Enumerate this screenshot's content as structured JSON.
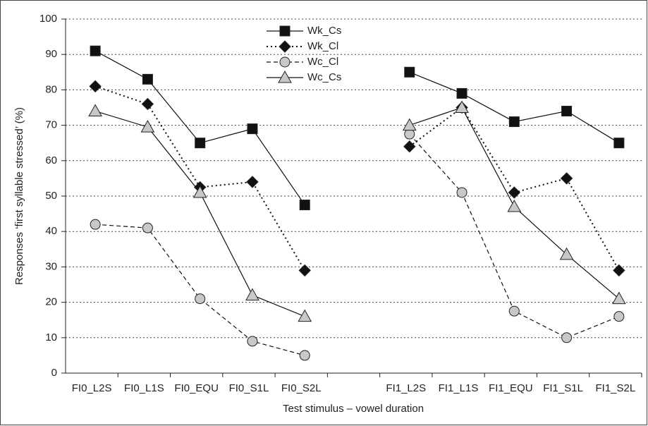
{
  "chart_data": {
    "type": "line",
    "y_label": "Responses ‘first syllable stressed’ (%)",
    "x_label": "Test stimulus – vowel duration",
    "categories": [
      "FI0_L2S",
      "FI0_L1S",
      "FI0_EQU",
      "FI0_S1L",
      "FI0_S2L",
      null,
      "FI1_L2S",
      "FI1_L1S",
      "FI1_EQU",
      "FI1_S1L",
      "FI1_S2L"
    ],
    "series": [
      {
        "name": "Wk_Cs",
        "color": "#111111",
        "marker": "square",
        "marker_color": "#111111",
        "line": "solid",
        "values": [
          91,
          83,
          65,
          69,
          47.5,
          null,
          85,
          79,
          71,
          74,
          65
        ]
      },
      {
        "name": "Wk_Cl",
        "color": "#111111",
        "marker": "diamond",
        "marker_color": "#111111",
        "line": "dotted",
        "values": [
          81,
          76,
          52.5,
          54,
          29,
          null,
          64,
          75,
          51,
          55,
          29
        ]
      },
      {
        "name": "Wc_Cl",
        "color": "#111111",
        "marker": "circle",
        "marker_color": "#c8c8c8",
        "line": "dashed",
        "values": [
          42,
          41,
          21,
          9,
          5,
          null,
          67.5,
          51,
          17.5,
          10,
          16
        ]
      },
      {
        "name": "Wc_Cs",
        "color": "#111111",
        "marker": "triangle",
        "marker_color": "#c8c8c8",
        "line": "solid",
        "values": [
          74,
          69.5,
          51,
          22,
          16,
          null,
          70,
          75,
          47,
          33.5,
          21
        ]
      }
    ],
    "ylim": [
      0,
      100
    ],
    "yticks": [
      0,
      10,
      20,
      30,
      40,
      50,
      60,
      70,
      80,
      90,
      100
    ],
    "grid": true
  }
}
